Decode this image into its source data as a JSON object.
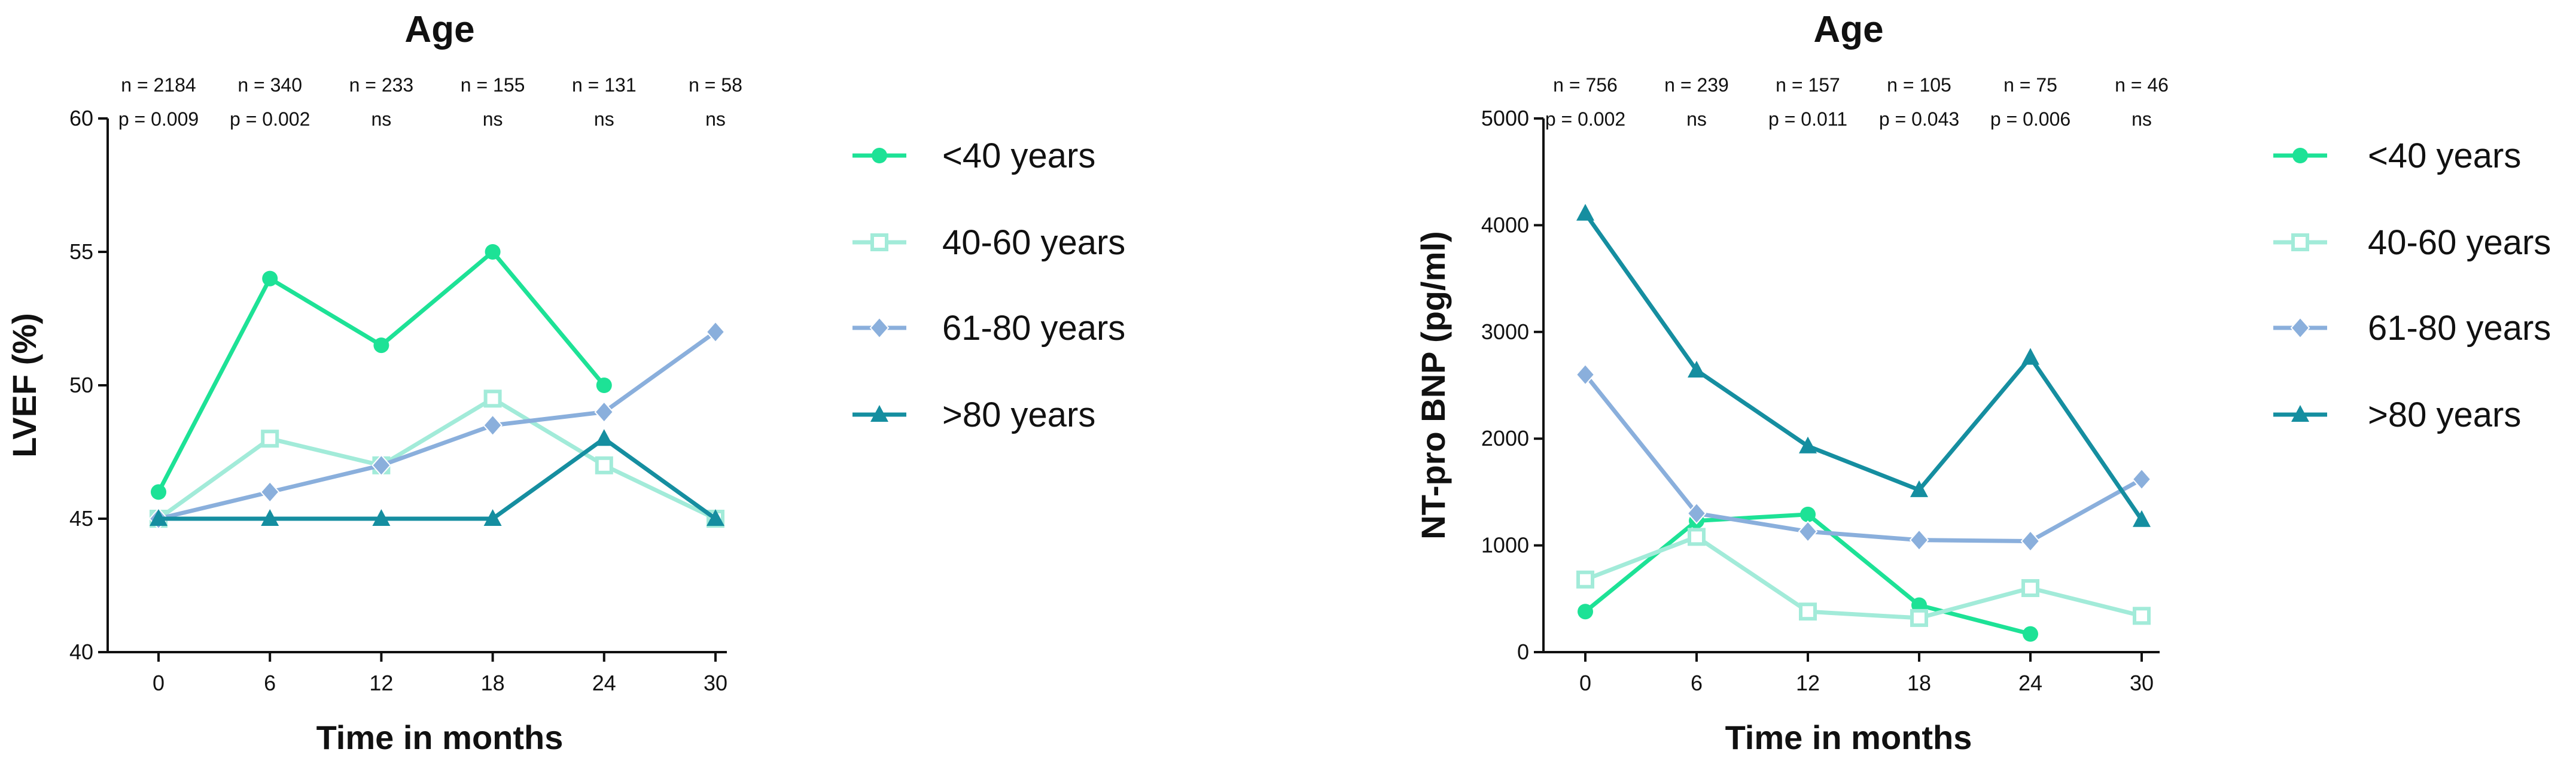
{
  "colors": {
    "under40": "#1de296",
    "40to60": "#a2ebd9",
    "61to80": "#8aafdc",
    "over80": "#158ea0"
  },
  "legend": [
    {
      "label": "<40 years",
      "color": "#1de296",
      "marker": "circle"
    },
    {
      "label": "40-60 years",
      "color": "#a2ebd9",
      "marker": "square-open"
    },
    {
      "label": "61-80 years",
      "color": "#8aafdc",
      "marker": "diamond"
    },
    {
      "label": ">80 years",
      "color": "#158ea0",
      "marker": "triangle"
    }
  ],
  "chart_data": [
    {
      "type": "line",
      "title": "Age",
      "xlabel": "Time in months",
      "ylabel": "LVEF (%)",
      "x": [
        0,
        6,
        12,
        18,
        24,
        30
      ],
      "xticks": [
        "0",
        "6",
        "12",
        "18",
        "24",
        "30"
      ],
      "ylim": [
        40,
        60
      ],
      "yticks": [
        "40",
        "45",
        "50",
        "55",
        "60"
      ],
      "n_labels": [
        "n = 2184",
        "n = 340",
        "n = 233",
        "n = 155",
        "n = 131",
        "n = 58"
      ],
      "p_labels": [
        "p = 0.009",
        "p = 0.002",
        "ns",
        "ns",
        "ns",
        "ns"
      ],
      "series": [
        {
          "name": "<40 years",
          "values": [
            46,
            54,
            51.5,
            55,
            50,
            null
          ]
        },
        {
          "name": "40-60 years",
          "values": [
            45,
            48,
            47,
            49.5,
            47,
            45
          ]
        },
        {
          "name": "61-80 years",
          "values": [
            45,
            46,
            47,
            48.5,
            49,
            52
          ]
        },
        {
          "name": ">80 years",
          "values": [
            45,
            45,
            45,
            45,
            48,
            45
          ]
        }
      ],
      "legend_position": "right"
    },
    {
      "type": "line",
      "title": "Age",
      "xlabel": "Time in months",
      "ylabel": "NT-pro BNP (pg/ml)",
      "x": [
        0,
        6,
        12,
        18,
        24,
        30
      ],
      "xticks": [
        "0",
        "6",
        "12",
        "18",
        "24",
        "30"
      ],
      "ylim": [
        0,
        5000
      ],
      "yticks": [
        "0",
        "1000",
        "2000",
        "3000",
        "4000",
        "5000"
      ],
      "n_labels": [
        "n = 756",
        "n = 239",
        "n = 157",
        "n = 105",
        "n = 75",
        "n = 46"
      ],
      "p_labels": [
        "p = 0.002",
        "ns",
        "p = 0.011",
        "p = 0.043",
        "p = 0.006",
        "ns"
      ],
      "series": [
        {
          "name": "<40 years",
          "values": [
            380,
            1230,
            1290,
            440,
            170,
            null
          ]
        },
        {
          "name": "40-60 years",
          "values": [
            680,
            1080,
            380,
            320,
            600,
            340
          ]
        },
        {
          "name": "61-80 years",
          "values": [
            2600,
            1300,
            1130,
            1050,
            1040,
            1620
          ]
        },
        {
          "name": ">80 years",
          "values": [
            4110,
            2640,
            1930,
            1520,
            2760,
            1240
          ]
        }
      ],
      "legend_position": "right"
    }
  ]
}
